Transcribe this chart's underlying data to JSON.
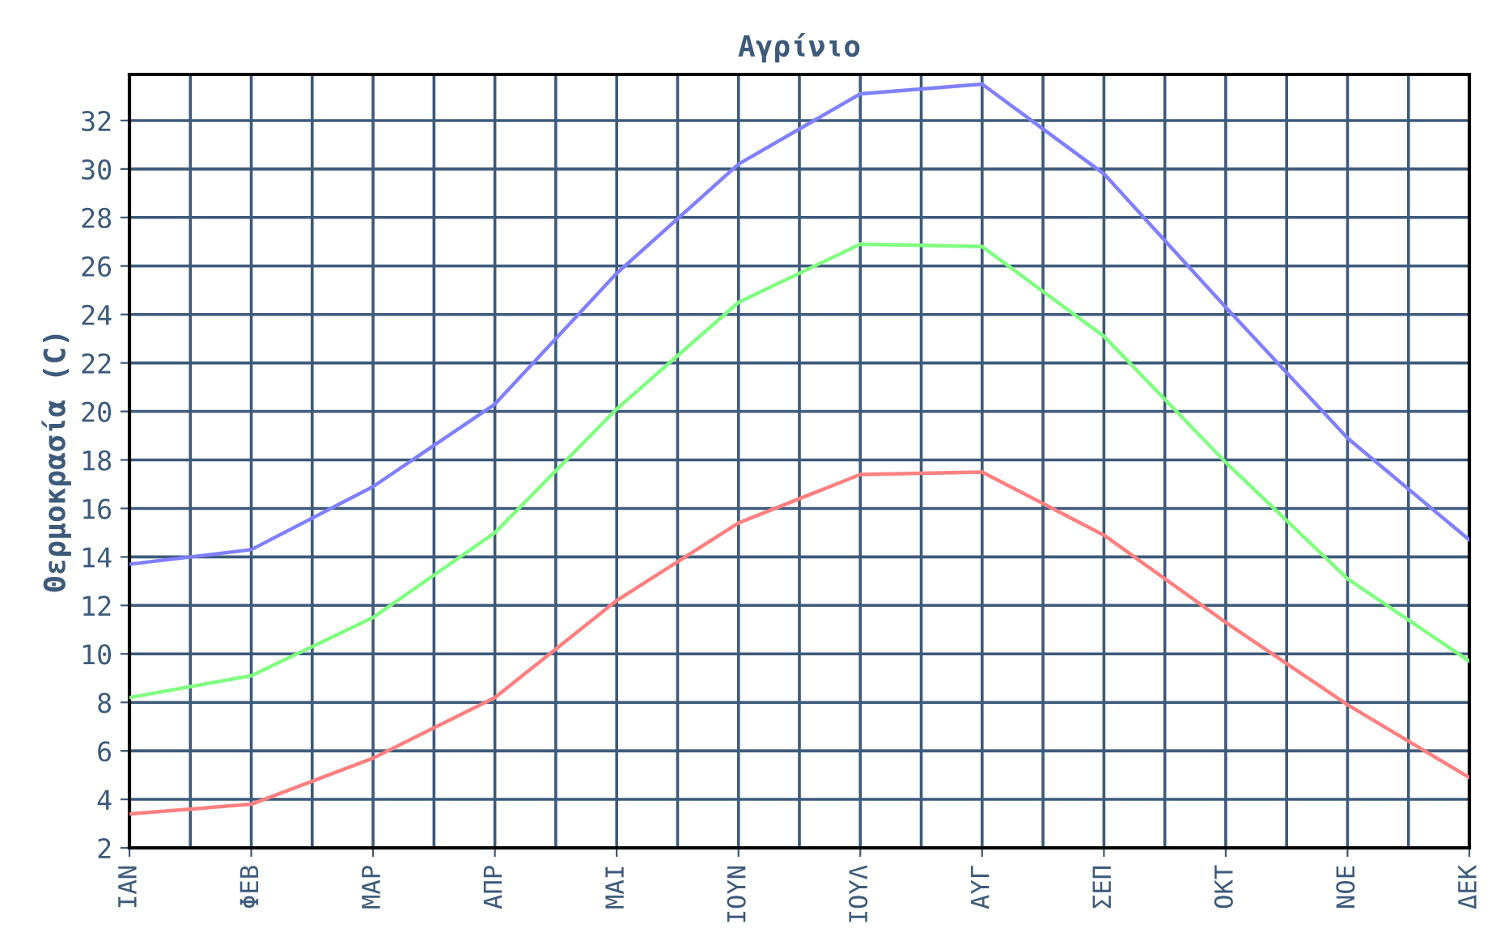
{
  "chart_data": {
    "type": "line",
    "title": "Αγρίνιο",
    "ylabel": "Θερμοκρασία (C)",
    "categories": [
      "ΙΑΝ",
      "ΦΕΒ",
      "ΜΑΡ",
      "ΑΠΡ",
      "ΜΑΙ",
      "ΙΟΥΝ",
      "ΙΟΥΛ",
      "ΑΥΓ",
      "ΣΕΠ",
      "ΟΚΤ",
      "ΝΟΕ",
      "ΔΕΚ"
    ],
    "series": [
      {
        "color": "#8080ff",
        "values": [
          13.7,
          14.3,
          16.9,
          20.3,
          25.7,
          30.2,
          33.1,
          33.5,
          29.8,
          24.3,
          18.9,
          14.7
        ]
      },
      {
        "color": "#80ff80",
        "values": [
          8.2,
          9.1,
          11.5,
          15.0,
          20.1,
          24.5,
          26.9,
          26.8,
          23.1,
          17.9,
          13.1,
          9.7
        ]
      },
      {
        "color": "#ff8080",
        "values": [
          3.4,
          3.8,
          5.7,
          8.2,
          12.2,
          15.4,
          17.4,
          17.5,
          14.9,
          11.3,
          7.9,
          4.9
        ]
      }
    ],
    "ylim": [
      2,
      33.9
    ],
    "yticks": [
      2,
      4,
      6,
      8,
      10,
      12,
      14,
      16,
      18,
      20,
      22,
      24,
      26,
      28,
      30,
      32
    ],
    "grid": true,
    "marker": "none",
    "line_style": "solid"
  }
}
